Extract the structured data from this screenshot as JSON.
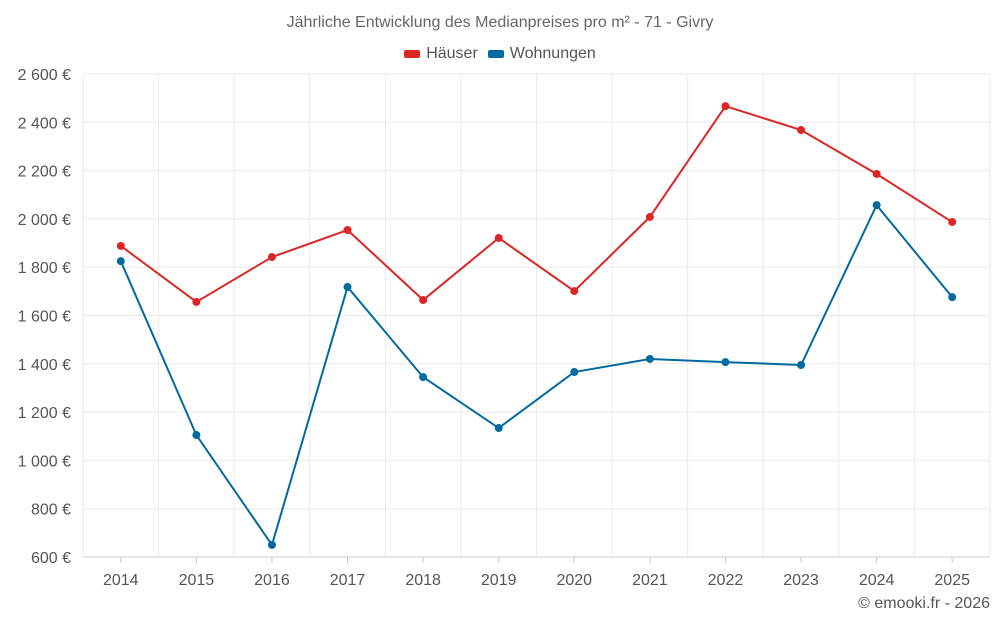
{
  "chart_data": {
    "type": "line",
    "title": "Jährliche Entwicklung des Medianpreises pro m² - 71 - Givry",
    "xlabel": "",
    "ylabel": "",
    "categories": [
      "2014",
      "2015",
      "2016",
      "2017",
      "2018",
      "2019",
      "2020",
      "2021",
      "2022",
      "2023",
      "2024",
      "2025"
    ],
    "ylim": [
      600,
      2600
    ],
    "yticks": [
      600,
      800,
      1000,
      1200,
      1400,
      1600,
      1800,
      2000,
      2200,
      2400,
      2600
    ],
    "ytick_labels": [
      "600 €",
      "800 €",
      "1 000 €",
      "1 200 €",
      "1 400 €",
      "1 600 €",
      "1 800 €",
      "2 000 €",
      "2 200 €",
      "2 400 €",
      "2 600 €"
    ],
    "grid": true,
    "legend_position": "top-center",
    "series": [
      {
        "name": "Häuser",
        "color": "#dc2626",
        "values": [
          1888,
          1656,
          1842,
          1954,
          1664,
          1921,
          1701,
          2008,
          2467,
          2368,
          2186,
          1987
        ]
      },
      {
        "name": "Wohnungen",
        "color": "#0369a1",
        "values": [
          1825,
          1105,
          650,
          1718,
          1345,
          1134,
          1366,
          1420,
          1407,
          1395,
          2057,
          1676
        ]
      }
    ]
  },
  "footer": "© emooki.fr - 2026"
}
